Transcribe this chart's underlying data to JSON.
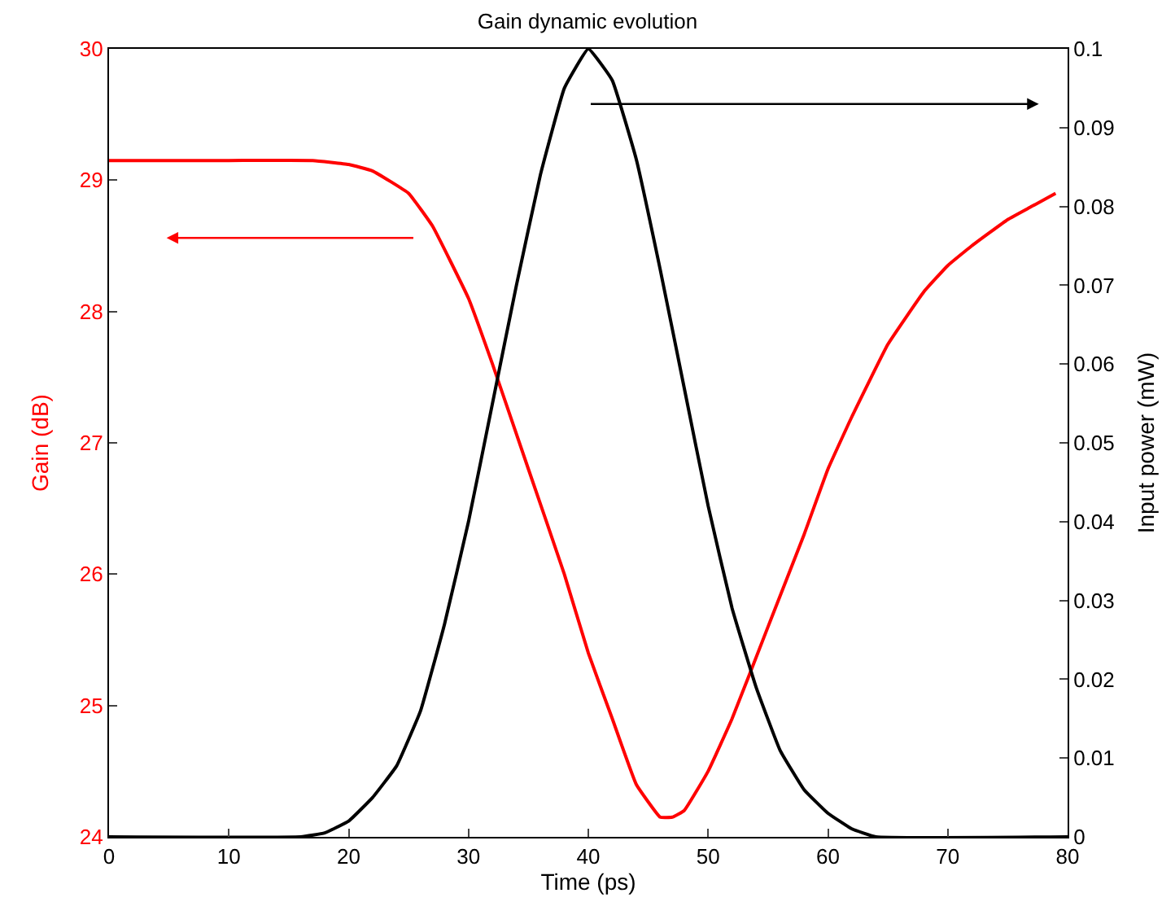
{
  "chart_data": {
    "type": "line",
    "title": "Gain dynamic evolution",
    "xlabel": "Time (ps)",
    "ylabel": "Gain (dB)",
    "y2label": "Input power (mW)",
    "xlim": [
      0,
      80
    ],
    "xticks": [
      0,
      10,
      20,
      30,
      40,
      50,
      60,
      70,
      80
    ],
    "ylim": [
      24,
      30
    ],
    "yticks": [
      24,
      25,
      26,
      27,
      28,
      29,
      30
    ],
    "y2lim": [
      0,
      0.1
    ],
    "y2ticks": [
      0,
      0.01,
      0.02,
      0.03,
      0.04,
      0.05,
      0.06,
      0.07,
      0.08,
      0.09,
      0.1
    ],
    "marker": "none",
    "line_style": "solid",
    "series": [
      {
        "color": "#ff0000",
        "x": [
          0,
          10,
          17,
          20,
          22,
          25,
          27,
          30,
          32,
          35,
          38,
          40,
          42,
          44,
          46,
          47,
          48,
          50,
          52,
          55,
          58,
          60,
          62,
          65,
          68,
          70,
          72,
          75,
          77,
          79
        ],
        "values": [
          29.15,
          29.15,
          29.15,
          29.12,
          29.07,
          28.9,
          28.65,
          28.1,
          27.6,
          26.8,
          26.0,
          25.4,
          24.9,
          24.4,
          24.15,
          24.15,
          24.2,
          24.5,
          24.9,
          25.6,
          26.3,
          26.8,
          27.2,
          27.75,
          28.15,
          28.35,
          28.5,
          28.7,
          28.8,
          28.9
        ]
      },
      {
        "color": "#000000",
        "axis": "y2",
        "x": [
          0,
          16,
          18,
          20,
          22,
          24,
          26,
          28,
          30,
          32,
          34,
          36,
          38,
          40,
          42,
          44,
          46,
          48,
          50,
          52,
          54,
          56,
          58,
          60,
          62,
          64,
          80
        ],
        "values": [
          0,
          0,
          0.0005,
          0.002,
          0.005,
          0.009,
          0.016,
          0.027,
          0.04,
          0.055,
          0.07,
          0.084,
          0.095,
          0.1,
          0.096,
          0.086,
          0.072,
          0.057,
          0.042,
          0.029,
          0.019,
          0.011,
          0.006,
          0.003,
          0.001,
          0,
          0
        ]
      }
    ]
  }
}
